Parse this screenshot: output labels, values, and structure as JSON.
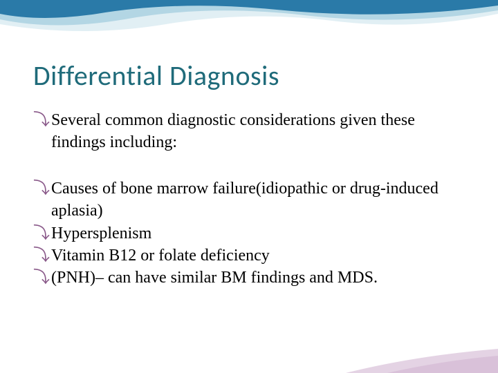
{
  "slide": {
    "title": "Differential Diagnosis",
    "title_color": "#1f6b7a",
    "title_fontsize": 40,
    "bullet_marker": "⤵",
    "bullet_color": "#8a5a8a",
    "text_color": "#000000",
    "body_fontsize": 24,
    "bullets": [
      {
        "text": "Several common diagnostic considerations given these findings including:",
        "spacer_after": true
      },
      {
        "text": "Causes of bone marrow failure(idiopathic or drug-induced aplasia)",
        "spacer_after": false
      },
      {
        "text": "Hypersplenism",
        "spacer_after": false
      },
      {
        "text": "Vitamin B12 or folate deficiency",
        "spacer_after": false
      },
      {
        "text": "(PNH)– can have similar BM findings and MDS.",
        "spacer_after": false
      }
    ]
  },
  "decoration": {
    "wave_color_main": "#2a7aa8",
    "wave_color_light": "#a8d0e0",
    "wave_color_lighter": "#d4e8f0",
    "bottom_accent_color": "#c9a8c9",
    "background_color": "#ffffff"
  }
}
